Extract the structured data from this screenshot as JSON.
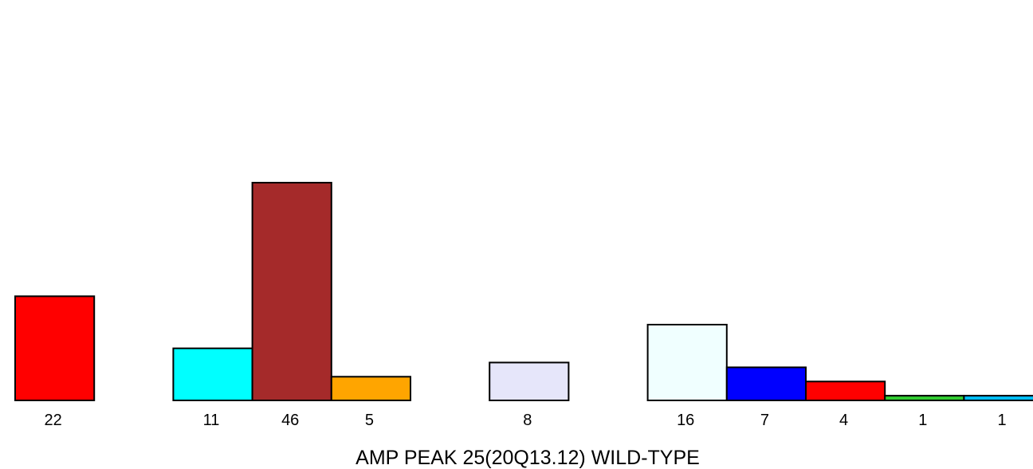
{
  "chart_data": {
    "type": "bar",
    "title": "",
    "xlabel": "AMP PEAK 25(20Q13.12) WILD-TYPE",
    "ylabel": "",
    "categories": [
      "22",
      "",
      "11",
      "46",
      "5",
      "",
      "8",
      "",
      "16",
      "7",
      "4",
      "1",
      "1"
    ],
    "values": [
      22,
      0,
      11,
      46,
      5,
      0,
      8,
      0,
      16,
      7,
      4,
      1,
      1
    ],
    "colors": [
      "#ff0000",
      "",
      "#00ffff",
      "#a52a2a",
      "#ffa500",
      "",
      "#e6e6fa",
      "",
      "#f0ffff",
      "#0000ff",
      "#ff0000",
      "#32cd32",
      "#00bfff"
    ],
    "ylim": [
      0,
      46
    ],
    "grid": false,
    "legend": "none"
  }
}
